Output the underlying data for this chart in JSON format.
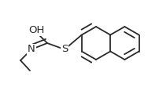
{
  "background_color": "#ffffff",
  "line_color": "#2a2a2a",
  "line_width": 1.3,
  "dbo": 0.012,
  "figsize": [
    2.02,
    1.25
  ],
  "dpi": 100,
  "xlim": [
    0,
    202
  ],
  "ylim": [
    0,
    125
  ]
}
